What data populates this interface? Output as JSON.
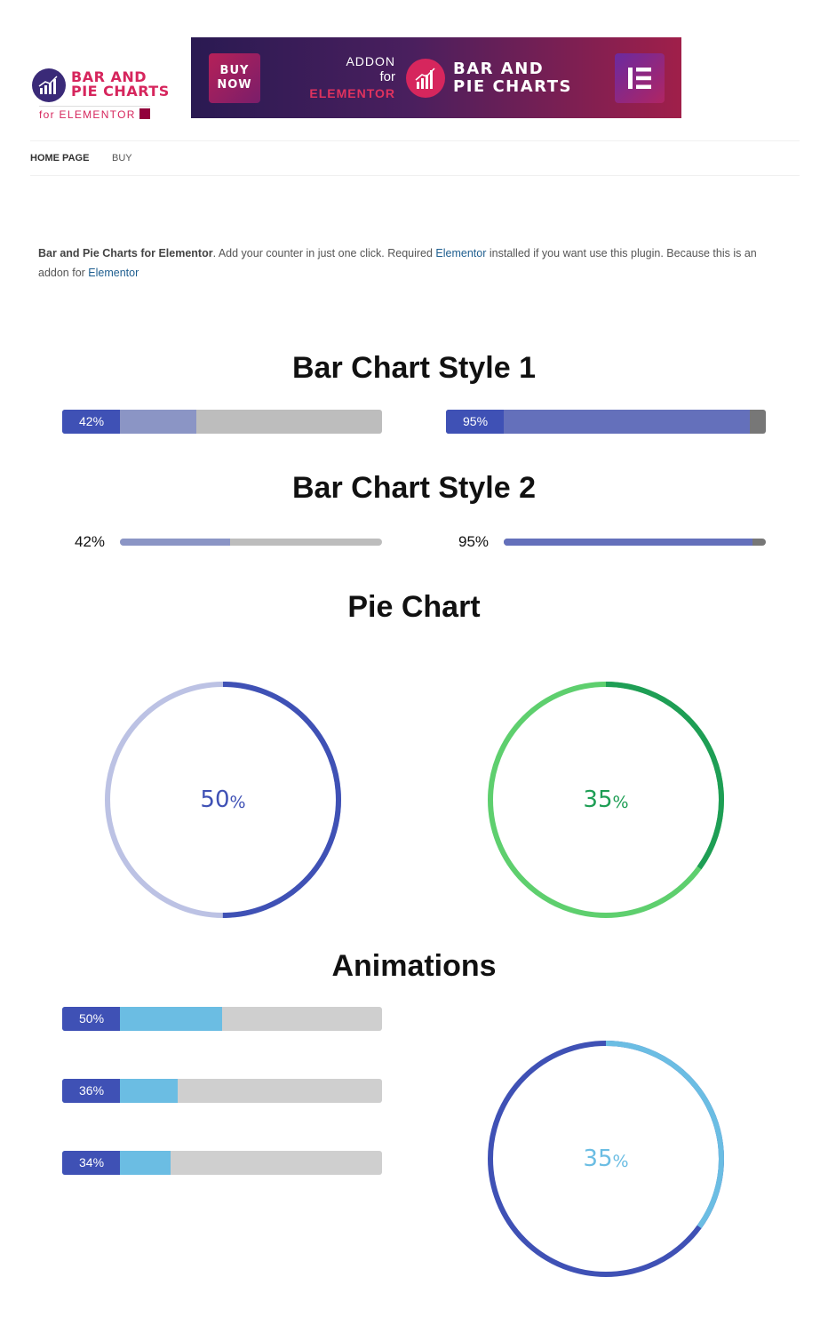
{
  "logo": {
    "line1": "BAR AND",
    "line2": "PIE CHARTS",
    "sub": "for ELEMENTOR",
    "icon": "bar-chart-icon"
  },
  "banner": {
    "buy_line1": "BUY",
    "buy_line2": "NOW",
    "addon_line1": "ADDON",
    "addon_line2": "for",
    "addon_line3": "ELEMENTOR",
    "title_line1": "BAR AND",
    "title_line2": "PIE CHARTS",
    "icon": "elementor-icon"
  },
  "nav": {
    "items": [
      {
        "label": "HOME PAGE"
      },
      {
        "label": "BUY"
      }
    ]
  },
  "description": {
    "bold": "Bar and Pie Charts for Elementor",
    "part1": ". Add your counter in just one click. Required ",
    "link1": "Elementor",
    "part2": " installed if you want use this plugin. Because this is an addon for ",
    "link2": "Elementor"
  },
  "sections": {
    "style1_title": "Bar Chart Style 1",
    "style2_title": "Bar Chart Style 2",
    "pie_title": "Pie Chart",
    "animations_title": "Animations"
  },
  "colors": {
    "label_blue": "#3f51b5",
    "style1_a_fill": "#8b95c5",
    "style1_b_fill": "#6470bb",
    "track_gray": "#bdbdbd",
    "track_dark": "#777777",
    "pie1_dark": "#3f51b5",
    "pie1_light": "#bcc2e4",
    "pie2_dark": "#1e9e55",
    "pie2_light": "#5ecf6e",
    "anim_fill": "#6bbde3",
    "anim_track": "#cfcfcf"
  },
  "style1_bars": [
    {
      "label": "42%",
      "value": 42
    },
    {
      "label": "95%",
      "value": 95
    }
  ],
  "style2_bars": [
    {
      "label": "42%",
      "value": 42
    },
    {
      "label": "95%",
      "value": 95
    }
  ],
  "pies": [
    {
      "num": "50",
      "unit": "%",
      "value": 50
    },
    {
      "num": "35",
      "unit": "%",
      "value": 35
    }
  ],
  "animation_bars": [
    {
      "label": "50%",
      "value": 50
    },
    {
      "label": "36%",
      "value": 36
    },
    {
      "label": "34%",
      "value": 34
    }
  ],
  "animation_pie": {
    "num": "35",
    "unit": "%",
    "value": 35
  }
}
